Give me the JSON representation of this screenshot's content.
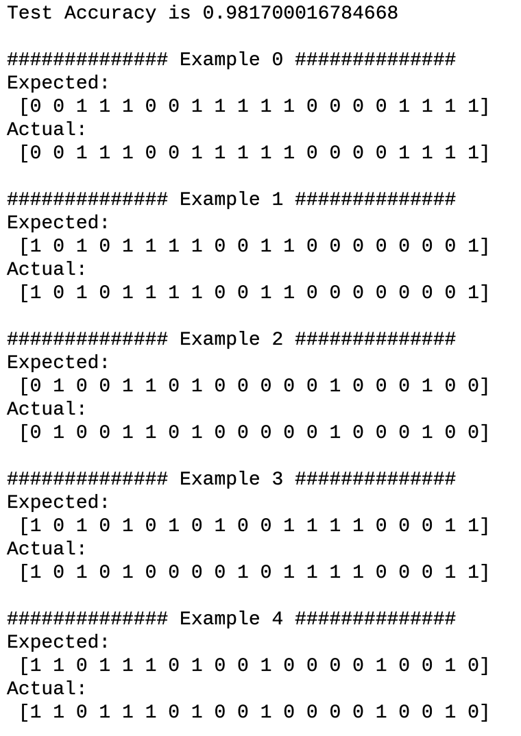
{
  "accuracy_line": "Test Accuracy is 0.981700016784668",
  "examples": [
    {
      "header": "############## Example 0 ##############",
      "expected_label": "Expected:",
      "expected": " [0 0 1 1 1 0 0 1 1 1 1 1 0 0 0 0 1 1 1 1]",
      "actual_label": "Actual:",
      "actual": " [0 0 1 1 1 0 0 1 1 1 1 1 0 0 0 0 1 1 1 1]"
    },
    {
      "header": "############## Example 1 ##############",
      "expected_label": "Expected:",
      "expected": " [1 0 1 0 1 1 1 1 0 0 1 1 0 0 0 0 0 0 0 1]",
      "actual_label": "Actual:",
      "actual": " [1 0 1 0 1 1 1 1 0 0 1 1 0 0 0 0 0 0 0 1]"
    },
    {
      "header": "############## Example 2 ##############",
      "expected_label": "Expected:",
      "expected": " [0 1 0 0 1 1 0 1 0 0 0 0 0 1 0 0 0 1 0 0]",
      "actual_label": "Actual:",
      "actual": " [0 1 0 0 1 1 0 1 0 0 0 0 0 1 0 0 0 1 0 0]"
    },
    {
      "header": "############## Example 3 ##############",
      "expected_label": "Expected:",
      "expected": " [1 0 1 0 1 0 1 0 1 0 0 1 1 1 1 0 0 0 1 1]",
      "actual_label": "Actual:",
      "actual": " [1 0 1 0 1 0 0 0 0 1 0 1 1 1 1 0 0 0 1 1]"
    },
    {
      "header": "############## Example 4 ##############",
      "expected_label": "Expected:",
      "expected": " [1 1 0 1 1 1 0 1 0 0 1 0 0 0 0 1 0 0 1 0]",
      "actual_label": "Actual:",
      "actual": " [1 1 0 1 1 1 0 1 0 0 1 0 0 0 0 1 0 0 1 0]"
    }
  ]
}
